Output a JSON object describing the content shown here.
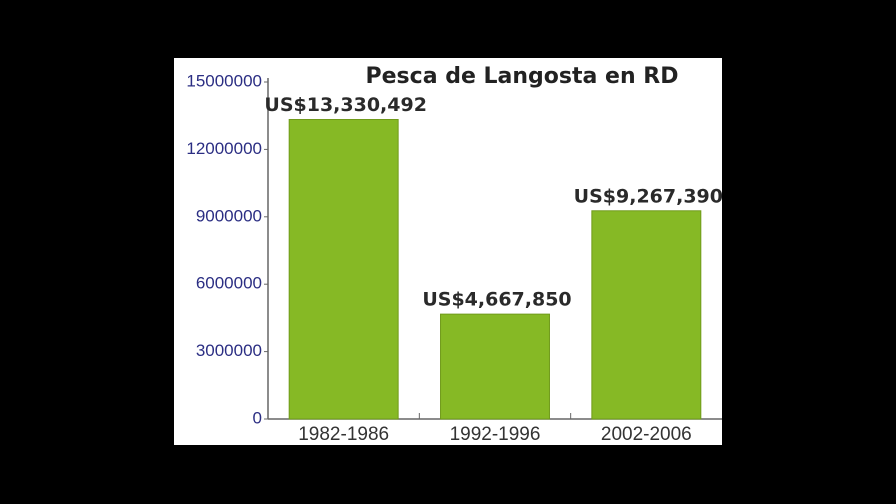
{
  "chart_data": {
    "type": "bar",
    "title": "Pesca de Langosta en RD",
    "categories": [
      "1982-1986",
      "1992-1996",
      "2002-2006"
    ],
    "values": [
      13330492,
      4667850,
      9267390
    ],
    "value_labels": [
      "US$13,330,492",
      "US$4,667,850",
      "US$9,267,390"
    ],
    "color": "#86b925",
    "ylim": [
      0,
      15000000
    ],
    "yticks": [
      0,
      3000000,
      6000000,
      9000000,
      12000000,
      15000000
    ],
    "grid": false
  }
}
